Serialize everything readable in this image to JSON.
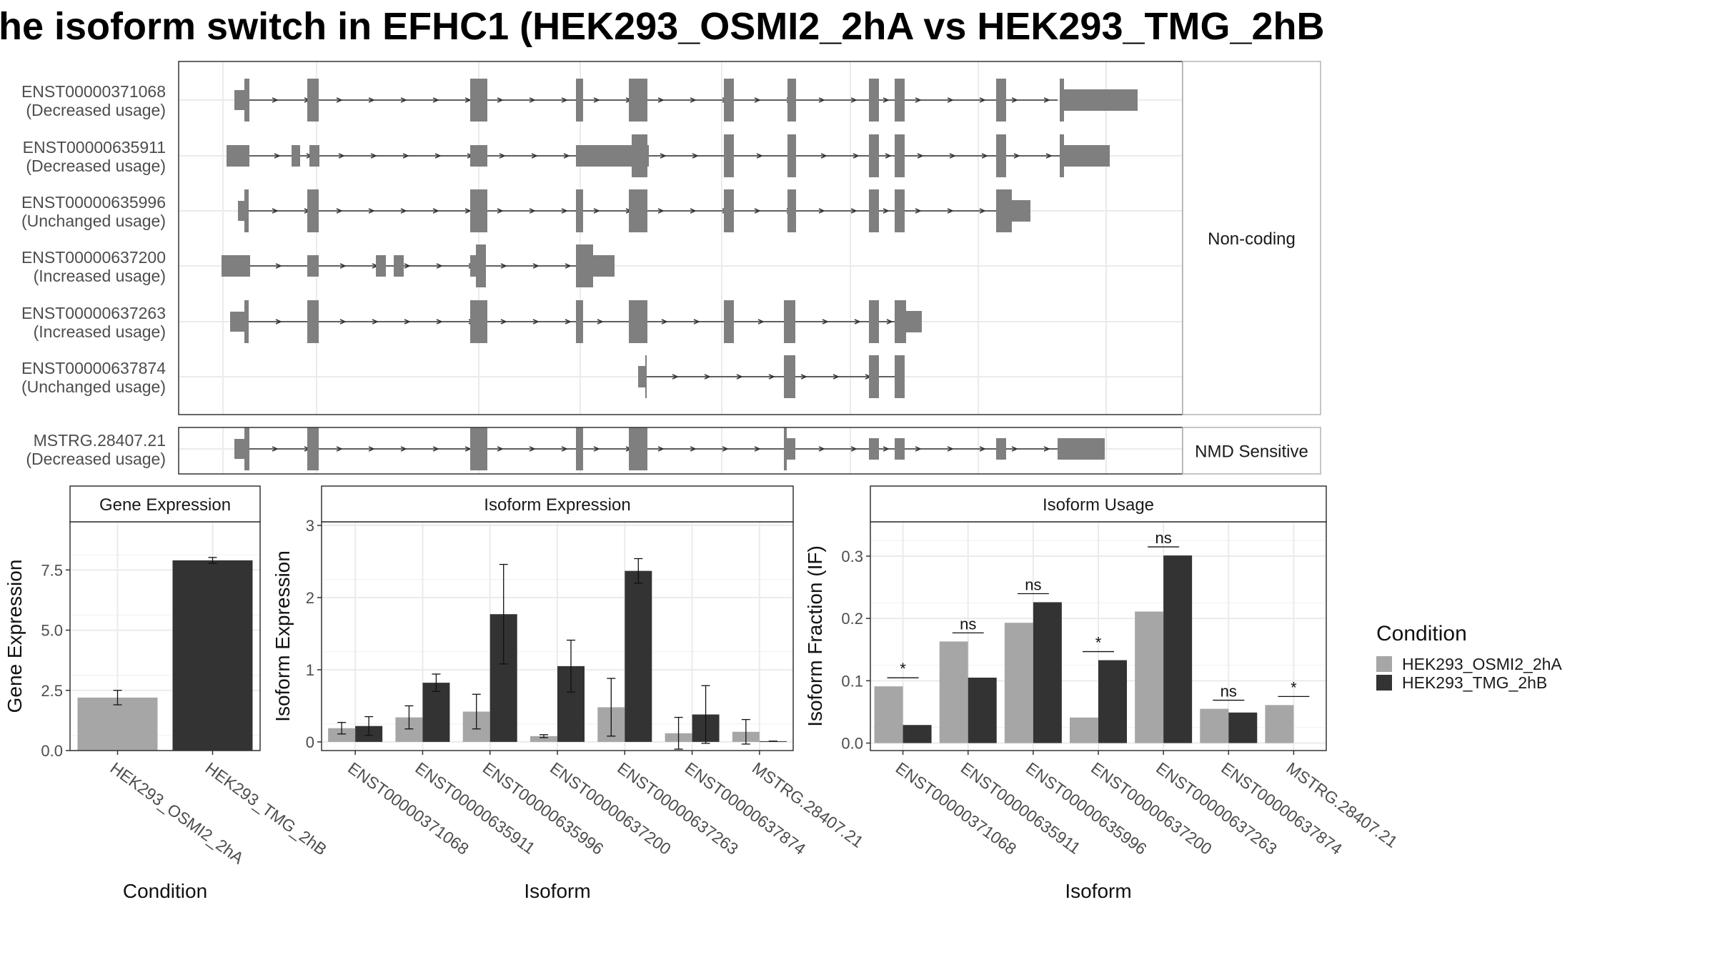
{
  "title": "he isoform switch in EFHC1 (HEK293_OSMI2_2hA vs HEK293_TMG_2hB",
  "structure": {
    "isoforms": [
      {
        "id": "ENST00000371068",
        "usage": "(Decreased usage)"
      },
      {
        "id": "ENST00000635911",
        "usage": "(Decreased usage)"
      },
      {
        "id": "ENST00000635996",
        "usage": "(Unchanged usage)"
      },
      {
        "id": "ENST00000637200",
        "usage": "(Increased usage)"
      },
      {
        "id": "ENST00000637263",
        "usage": "(Increased usage)"
      },
      {
        "id": "ENST00000637874",
        "usage": "(Unchanged usage)"
      }
    ],
    "isoforms_nmd": [
      {
        "id": "MSTRG.28407.21",
        "usage": "(Decreased usage)"
      }
    ],
    "group_noncoding": "Non-coding",
    "group_nmd": "NMD Sensitive"
  },
  "colors": {
    "osmi": "#A6A6A6",
    "tmg": "#333333",
    "exon": "#7F7F7F",
    "grid": "#EBEBEB"
  },
  "chart_data": [
    {
      "type": "bar",
      "title": "Gene Expression",
      "xlabel": "Condition",
      "ylabel": "Gene Expression",
      "ylim": [
        0,
        9.5
      ],
      "yticks": [
        "0.0",
        "2.5",
        "5.0",
        "7.5"
      ],
      "categories": [
        "HEK293_OSMI2_2hA",
        "HEK293_TMG_2hB"
      ],
      "values": [
        2.2,
        7.9
      ],
      "errors": [
        0.3,
        0.12
      ]
    },
    {
      "type": "bar",
      "title": "Isoform Expression",
      "xlabel": "Isoform",
      "ylabel": "Isoform Expression",
      "ylim": [
        -0.12,
        3.05
      ],
      "yticks": [
        "0",
        "1",
        "2",
        "3"
      ],
      "categories": [
        "ENST00000371068",
        "ENST00000635911",
        "ENST00000635996",
        "ENST00000637200",
        "ENST00000637263",
        "ENST00000637874",
        "MSTRG.28407.21"
      ],
      "series": [
        {
          "name": "HEK293_OSMI2_2hA",
          "values": [
            0.19,
            0.34,
            0.42,
            0.08,
            0.48,
            0.12,
            0.14
          ],
          "errors": [
            0.08,
            0.16,
            0.24,
            0.02,
            0.4,
            0.22,
            0.17
          ]
        },
        {
          "name": "HEK293_TMG_2hB",
          "values": [
            0.22,
            0.82,
            1.77,
            1.05,
            2.37,
            0.38,
            0.01
          ],
          "errors": [
            0.13,
            0.12,
            0.69,
            0.36,
            0.17,
            0.4,
            0.0
          ]
        }
      ]
    },
    {
      "type": "bar",
      "title": "Isoform Usage",
      "xlabel": "Isoform",
      "ylabel": "Isoform Fraction (IF)",
      "ylim": [
        -0.012,
        0.355
      ],
      "yticks": [
        "0.0",
        "0.1",
        "0.2",
        "0.3"
      ],
      "categories": [
        "ENST00000371068",
        "ENST00000635911",
        "ENST00000635996",
        "ENST00000637200",
        "ENST00000637263",
        "ENST00000637874",
        "MSTRG.28407.21"
      ],
      "series": [
        {
          "name": "HEK293_OSMI2_2hA",
          "values": [
            0.091,
            0.163,
            0.193,
            0.041,
            0.211,
            0.055,
            0.061
          ]
        },
        {
          "name": "HEK293_TMG_2hB",
          "values": [
            0.029,
            0.105,
            0.226,
            0.133,
            0.301,
            0.049,
            0.0
          ]
        }
      ],
      "significance": [
        "*",
        "ns",
        "ns",
        "*",
        "ns",
        "ns",
        "*"
      ]
    }
  ],
  "legend": {
    "title": "Condition",
    "items": [
      {
        "label": "HEK293_OSMI2_2hA",
        "color": "#A6A6A6"
      },
      {
        "label": "HEK293_TMG_2hB",
        "color": "#333333"
      }
    ]
  }
}
